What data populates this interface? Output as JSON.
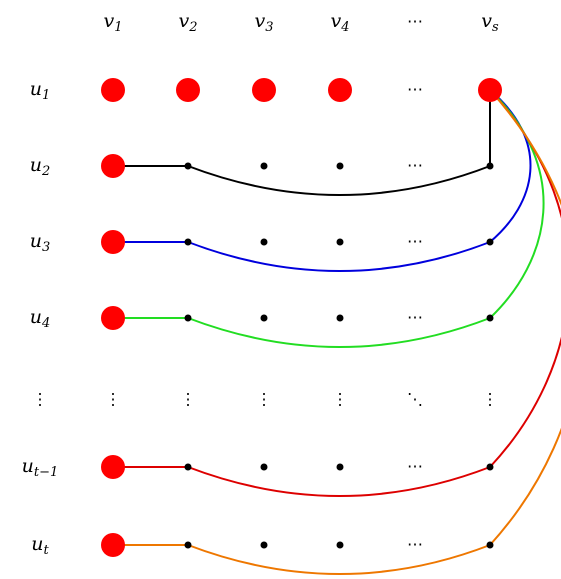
{
  "columns": [
    {
      "base": "v",
      "sub": "1"
    },
    {
      "base": "v",
      "sub": "2"
    },
    {
      "base": "v",
      "sub": "3"
    },
    {
      "base": "v",
      "sub": "4"
    },
    {
      "ellipsis": "⋯"
    },
    {
      "base": "v",
      "sub": "s"
    }
  ],
  "rows": [
    {
      "base": "u",
      "sub": "1",
      "kind": "top"
    },
    {
      "base": "u",
      "sub": "2",
      "kind": "normal",
      "color": "#000000"
    },
    {
      "base": "u",
      "sub": "3",
      "kind": "normal",
      "color": "#0000dd"
    },
    {
      "base": "u",
      "sub": "4",
      "kind": "normal",
      "color": "#22dd22"
    },
    {
      "ellipsis": "⋮",
      "kind": "vdots"
    },
    {
      "base": "u",
      "sub": "t−1",
      "kind": "normal",
      "color": "#dd0000"
    },
    {
      "base": "u",
      "sub": "t",
      "kind": "normal",
      "color": "#ee7700"
    }
  ],
  "cell_ellipsis": "⋯",
  "diag_ellipsis": "⋱",
  "vert_ellipsis": "⋮",
  "big_vertex_color": "#ff0000",
  "small_vertex_color": "#000000"
}
